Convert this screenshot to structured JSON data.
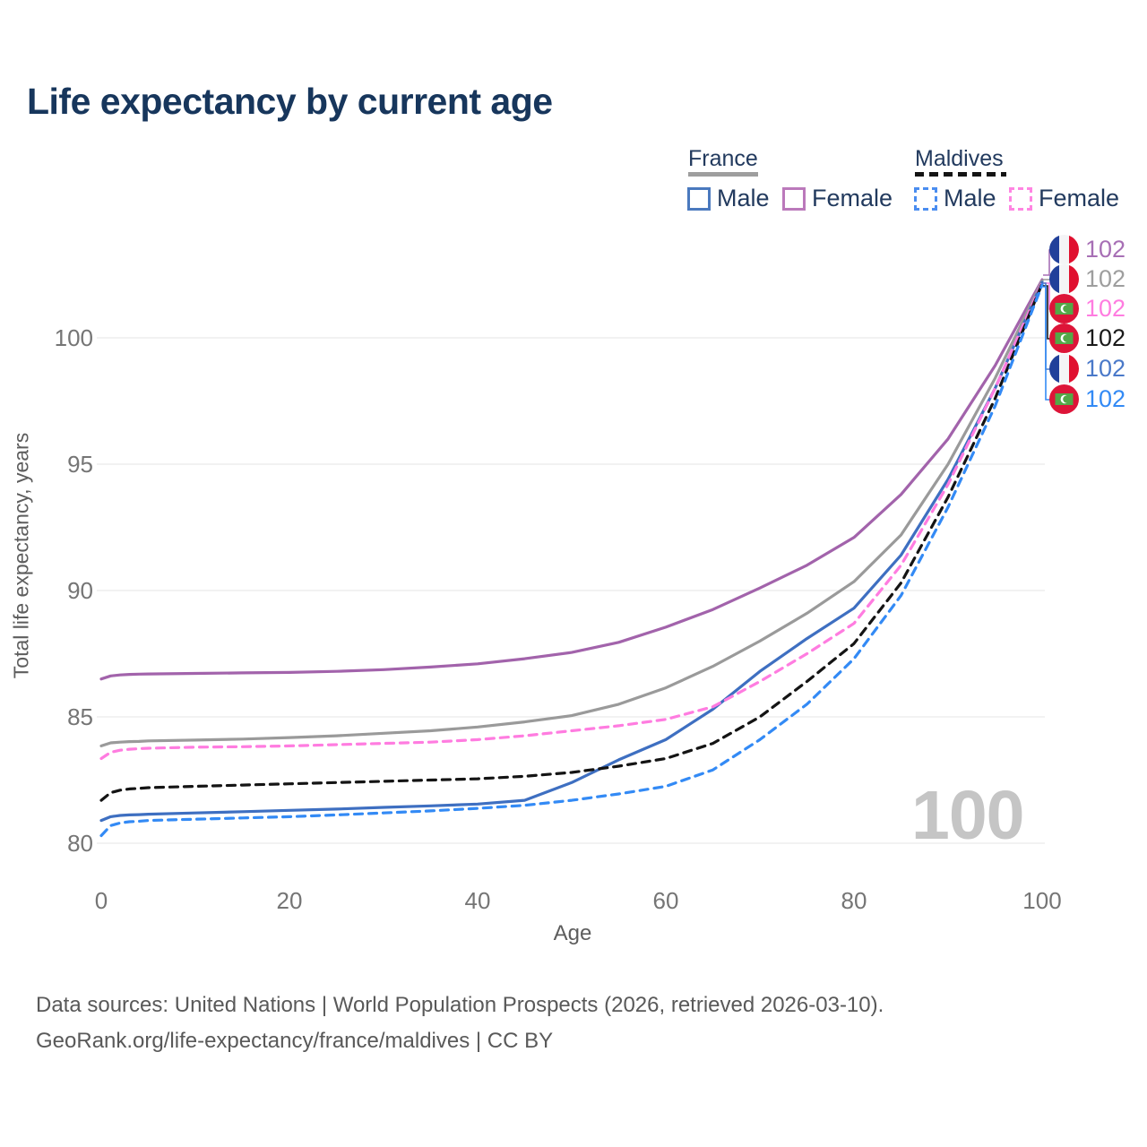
{
  "title": "Life expectancy by current age",
  "legend": {
    "groups": [
      {
        "label": "France",
        "underline_color": "#9e9e9e",
        "underline_style": "solid",
        "items": [
          {
            "label": "Male",
            "color": "#4a79be",
            "dashed": false
          },
          {
            "label": "Female",
            "color": "#bb79bb",
            "dashed": false
          }
        ]
      },
      {
        "label": "Maldives",
        "underline_color": "#141414",
        "underline_style": "dashed",
        "items": [
          {
            "label": "Male",
            "color": "#4a8df0",
            "dashed": true
          },
          {
            "label": "Female",
            "color": "#ff85e2",
            "dashed": true
          }
        ]
      }
    ]
  },
  "chart_data": {
    "type": "line",
    "title": "Life expectancy by current age",
    "xlabel": "Age",
    "ylabel": "Total life expectancy, years",
    "xlim": [
      0,
      100
    ],
    "ylim": [
      79.5,
      103
    ],
    "x_ticks": [
      0,
      20,
      40,
      60,
      80,
      100
    ],
    "y_ticks": [
      80,
      85,
      90,
      95,
      100
    ],
    "grid": "horizontal",
    "legend_position": "top-right",
    "x": [
      0,
      1,
      2,
      3,
      4,
      5,
      10,
      15,
      20,
      25,
      30,
      35,
      40,
      45,
      50,
      55,
      60,
      65,
      70,
      75,
      80,
      85,
      90,
      95,
      100
    ],
    "series": [
      {
        "name": "France Female",
        "country": "France",
        "sex": "Female",
        "color": "#a263ab",
        "dashed": false,
        "values": [
          86.5,
          86.62,
          86.66,
          86.68,
          86.69,
          86.7,
          86.72,
          86.74,
          86.76,
          86.8,
          86.87,
          86.97,
          87.1,
          87.3,
          87.55,
          87.95,
          88.55,
          89.25,
          90.1,
          91.0,
          92.1,
          93.8,
          96.0,
          98.9,
          102.3
        ]
      },
      {
        "name": "France Both sexes",
        "country": "France",
        "sex": "Both",
        "color": "#9a9a9a",
        "dashed": false,
        "values": [
          83.85,
          83.97,
          84.0,
          84.02,
          84.03,
          84.05,
          84.08,
          84.12,
          84.18,
          84.25,
          84.35,
          84.45,
          84.6,
          84.8,
          85.05,
          85.5,
          86.15,
          87.0,
          88.0,
          89.1,
          90.35,
          92.2,
          95.0,
          98.4,
          102.25
        ]
      },
      {
        "name": "France Male",
        "country": "France",
        "sex": "Male",
        "color": "#3e6fc1",
        "dashed": false,
        "values": [
          80.9,
          81.05,
          81.1,
          81.12,
          81.13,
          81.15,
          81.2,
          81.25,
          81.3,
          81.35,
          81.42,
          81.48,
          81.55,
          81.7,
          82.4,
          83.3,
          84.1,
          85.3,
          86.8,
          88.1,
          89.3,
          91.4,
          94.4,
          98.0,
          102.2
        ]
      },
      {
        "name": "Maldives Female",
        "country": "Maldives",
        "sex": "Female",
        "color": "#ff7ce0",
        "dashed": true,
        "values": [
          83.35,
          83.6,
          83.68,
          83.72,
          83.74,
          83.76,
          83.8,
          83.82,
          83.85,
          83.9,
          83.95,
          84.0,
          84.1,
          84.25,
          84.45,
          84.65,
          84.9,
          85.4,
          86.4,
          87.5,
          88.7,
          91.0,
          94.2,
          98.0,
          102.2
        ]
      },
      {
        "name": "Maldives Both sexes",
        "country": "Maldives",
        "sex": "Both",
        "color": "#141414",
        "dashed": true,
        "values": [
          81.7,
          82.0,
          82.1,
          82.15,
          82.17,
          82.2,
          82.25,
          82.3,
          82.35,
          82.4,
          82.45,
          82.5,
          82.55,
          82.65,
          82.8,
          83.05,
          83.35,
          83.95,
          85.0,
          86.4,
          87.9,
          90.3,
          93.7,
          97.6,
          102.15
        ]
      },
      {
        "name": "Maldives Male",
        "country": "Maldives",
        "sex": "Male",
        "color": "#338af5",
        "dashed": true,
        "values": [
          80.3,
          80.7,
          80.8,
          80.85,
          80.87,
          80.9,
          80.95,
          81.0,
          81.05,
          81.12,
          81.2,
          81.28,
          81.38,
          81.5,
          81.7,
          81.95,
          82.25,
          82.9,
          84.1,
          85.5,
          87.3,
          89.8,
          93.3,
          97.3,
          102.1
        ]
      }
    ],
    "end_labels": [
      {
        "series": "France Female",
        "flag": "france",
        "value": "102",
        "color": "#a76fb5"
      },
      {
        "series": "France Both sexes",
        "flag": "france",
        "value": "102",
        "color": "#9e9e9e"
      },
      {
        "series": "Maldives Female",
        "flag": "maldives",
        "value": "102",
        "color": "#ff7ce0"
      },
      {
        "series": "Maldives Both sexes",
        "flag": "maldives",
        "value": "102",
        "color": "#1a1a1a"
      },
      {
        "series": "France Male",
        "flag": "france",
        "value": "102",
        "color": "#4a79c9"
      },
      {
        "series": "Maldives Male",
        "flag": "maldives",
        "value": "102",
        "color": "#338af5"
      }
    ]
  },
  "watermark": "100",
  "footer": {
    "line1": "Data sources: United Nations | World Population Prospects (2026, retrieved 2026-03-10).",
    "line2": "GeoRank.org/life-expectancy/france/maldives | CC BY"
  }
}
